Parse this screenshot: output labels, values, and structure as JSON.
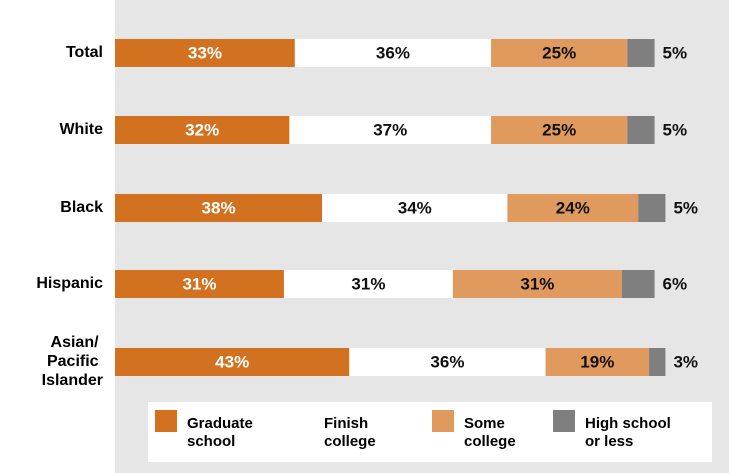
{
  "chart_data": {
    "type": "stacked_bar_horizontal",
    "categories": [
      "Total",
      "White",
      "Black",
      "Hispanic",
      "Asian/ Pacific Islander"
    ],
    "xlim": [
      0,
      100
    ],
    "series": [
      {
        "name": "Graduate school",
        "color": "#d2711f",
        "values": [
          33,
          32,
          38,
          31,
          43
        ],
        "value_labels": [
          "33%",
          "32%",
          "38%",
          "31%",
          "43%"
        ]
      },
      {
        "name": "Finish college",
        "color": "#ffffff",
        "values": [
          36,
          37,
          34,
          31,
          36
        ],
        "value_labels": [
          "36%",
          "37%",
          "34%",
          "31%",
          "36%"
        ]
      },
      {
        "name": "Some college",
        "color": "#e09a5e",
        "values": [
          25,
          25,
          24,
          31,
          19
        ],
        "value_labels": [
          "25%",
          "25%",
          "24%",
          "31%",
          "19%"
        ]
      },
      {
        "name": "High school or less",
        "color": "#7f7f7f",
        "values": [
          5,
          5,
          5,
          6,
          3
        ],
        "value_labels": [
          "5%",
          "5%",
          "5%",
          "6%",
          "3%"
        ]
      }
    ]
  }
}
